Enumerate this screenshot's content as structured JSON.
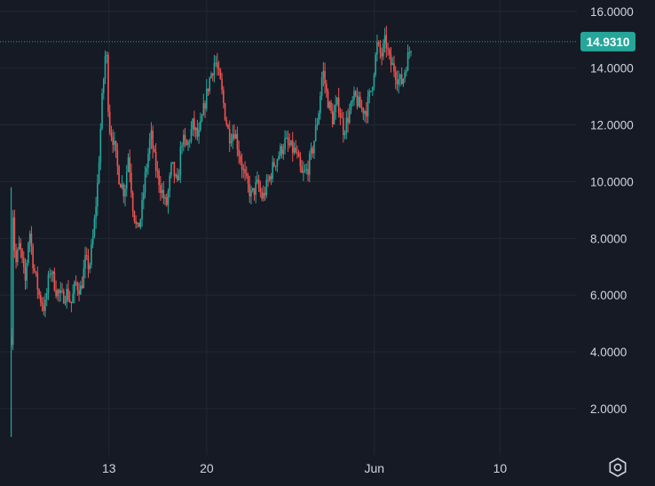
{
  "colors": {
    "background": "#161a25",
    "grid": "#232733",
    "text": "#d1d4dc",
    "up": "#26a69a",
    "down": "#ef5350",
    "last_price": "#26a69a"
  },
  "last_price": {
    "label": "14.9310",
    "value": 14.931
  },
  "settings_icon": "gear-hexagon-icon",
  "chart_data": {
    "type": "candlestick",
    "title": "",
    "xlabel": "",
    "ylabel": "",
    "ylim": [
      0.4,
      16.4
    ],
    "y_ticks": [
      {
        "value": 2,
        "label": "2.0000"
      },
      {
        "value": 4,
        "label": "4.0000"
      },
      {
        "value": 6,
        "label": "6.0000"
      },
      {
        "value": 8,
        "label": "8.0000"
      },
      {
        "value": 10,
        "label": "10.0000"
      },
      {
        "value": 12,
        "label": "12.0000"
      },
      {
        "value": 14,
        "label": "14.0000"
      },
      {
        "value": 16,
        "label": "16.0000"
      }
    ],
    "x_ticks": [
      {
        "day": 13,
        "label": "13"
      },
      {
        "day": 20,
        "label": "20"
      },
      {
        "day": 32,
        "label": "Jun"
      },
      {
        "day": 41,
        "label": "10"
      }
    ],
    "xlim_days": [
      5.2,
      46.5
    ],
    "grid": true,
    "price_path": [
      [
        6.0,
        1.0
      ],
      [
        6.05,
        9.8
      ],
      [
        6.3,
        7.0
      ],
      [
        6.6,
        7.8
      ],
      [
        7.0,
        6.4
      ],
      [
        7.3,
        8.4
      ],
      [
        7.6,
        7.0
      ],
      [
        8.0,
        6.0
      ],
      [
        8.4,
        5.5
      ],
      [
        8.8,
        7.0
      ],
      [
        9.2,
        6.2
      ],
      [
        9.6,
        5.9
      ],
      [
        10.0,
        6.1
      ],
      [
        10.3,
        5.7
      ],
      [
        10.6,
        6.4
      ],
      [
        11.0,
        6.2
      ],
      [
        11.3,
        7.2
      ],
      [
        11.6,
        7.0
      ],
      [
        11.9,
        8.2
      ],
      [
        12.2,
        10.0
      ],
      [
        12.5,
        12.8
      ],
      [
        12.8,
        14.9
      ],
      [
        13.0,
        12.0
      ],
      [
        13.3,
        11.5
      ],
      [
        13.7,
        10.2
      ],
      [
        14.1,
        9.6
      ],
      [
        14.4,
        11.0
      ],
      [
        14.7,
        9.2
      ],
      [
        15.0,
        8.2
      ],
      [
        15.3,
        8.8
      ],
      [
        15.6,
        10.2
      ],
      [
        16.0,
        11.7
      ],
      [
        16.3,
        10.6
      ],
      [
        16.7,
        9.8
      ],
      [
        17.1,
        9.1
      ],
      [
        17.5,
        10.6
      ],
      [
        17.9,
        9.8
      ],
      [
        18.2,
        11.5
      ],
      [
        18.6,
        11.2
      ],
      [
        19.0,
        12.0
      ],
      [
        19.4,
        11.5
      ],
      [
        19.8,
        12.6
      ],
      [
        20.2,
        13.6
      ],
      [
        20.6,
        14.3
      ],
      [
        21.0,
        13.4
      ],
      [
        21.3,
        12.4
      ],
      [
        21.6,
        11.6
      ],
      [
        22.0,
        11.8
      ],
      [
        22.4,
        10.8
      ],
      [
        22.8,
        10.0
      ],
      [
        23.2,
        9.5
      ],
      [
        23.6,
        9.9
      ],
      [
        24.0,
        9.4
      ],
      [
        24.4,
        10.0
      ],
      [
        24.8,
        10.6
      ],
      [
        25.2,
        11.0
      ],
      [
        25.6,
        11.4
      ],
      [
        26.0,
        11.2
      ],
      [
        26.4,
        11.0
      ],
      [
        26.8,
        10.2
      ],
      [
        27.2,
        10.4
      ],
      [
        27.6,
        11.2
      ],
      [
        28.0,
        12.4
      ],
      [
        28.3,
        14.0
      ],
      [
        28.6,
        13.0
      ],
      [
        29.0,
        12.2
      ],
      [
        29.4,
        12.8
      ],
      [
        29.8,
        11.8
      ],
      [
        30.2,
        12.4
      ],
      [
        30.6,
        13.0
      ],
      [
        31.0,
        12.6
      ],
      [
        31.4,
        12.5
      ],
      [
        31.8,
        13.3
      ],
      [
        32.2,
        14.8
      ],
      [
        32.5,
        14.4
      ],
      [
        32.8,
        15.0
      ],
      [
        33.1,
        14.2
      ],
      [
        33.4,
        14.0
      ],
      [
        33.7,
        13.6
      ],
      [
        34.0,
        13.5
      ],
      [
        34.3,
        14.2
      ],
      [
        34.7,
        14.93
      ]
    ]
  }
}
